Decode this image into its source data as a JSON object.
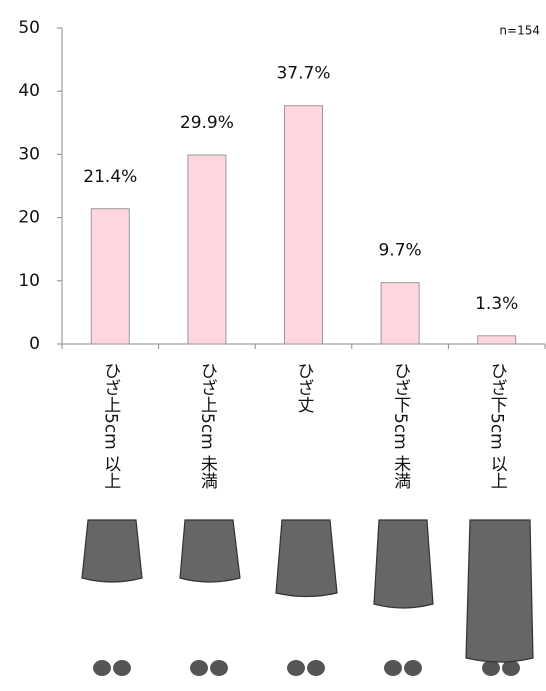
{
  "chart_data": {
    "type": "bar",
    "note": "n=154",
    "categories": [
      "ひざ上5cm 以上",
      "ひざ上5cm 未満",
      "ひざ丈",
      "ひざ下5cm 未満",
      "ひざ下5cm 以上"
    ],
    "values": [
      21.4,
      29.9,
      37.7,
      9.7,
      1.3
    ],
    "value_labels": [
      "21.4%",
      "29.9%",
      "37.7%",
      "9.7%",
      "1.3%"
    ],
    "color": "#ffd6e0",
    "ylim": [
      0,
      50
    ],
    "yticks": [
      0,
      10,
      20,
      30,
      40,
      50
    ]
  }
}
